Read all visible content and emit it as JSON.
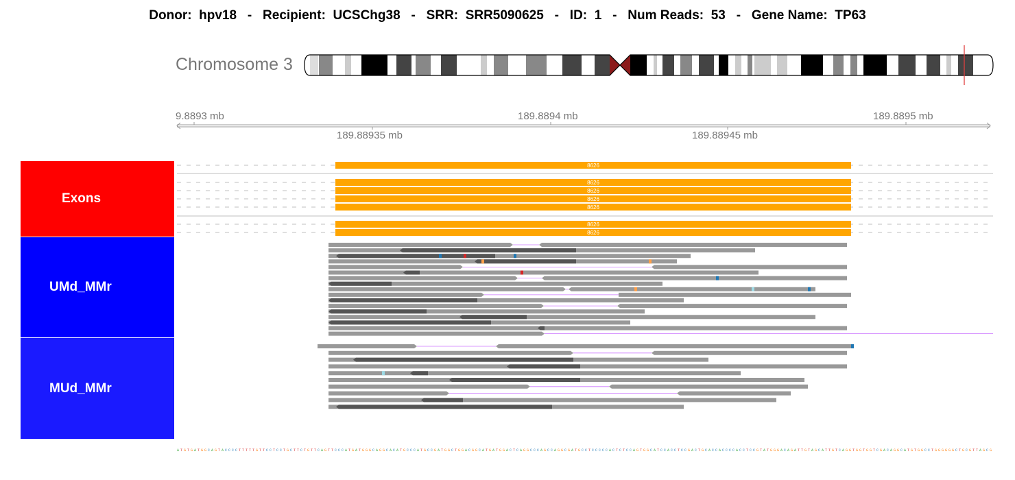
{
  "header": {
    "donor_label": "Donor:",
    "donor": "hpv18",
    "recipient_label": "Recipient:",
    "recipient": "UCSChg38",
    "srr_label": "SRR:",
    "srr": "SRR5090625",
    "id_label": "ID:",
    "id": "1",
    "reads_label": "Num Reads:",
    "reads": "53",
    "gene_label": "Gene Name:",
    "gene": "TP63",
    "separator": "-"
  },
  "chromosome": {
    "label": "Chromosome 3"
  },
  "ruler": {
    "top_ticks": [
      {
        "label": "9.8893 mb"
      },
      {
        "label": "189.8894 mb"
      },
      {
        "label": "189.8895 mb"
      }
    ],
    "bottom_ticks": [
      {
        "label": "189.88935 mb"
      },
      {
        "label": "189.88945 mb"
      }
    ]
  },
  "tracks": {
    "exons": {
      "label": "Exons",
      "color": "#ff0000",
      "feature_color": "#ffa500",
      "feature_label": "8626"
    },
    "umd": {
      "label": "UMd_MMr",
      "color": "#0000ff"
    },
    "mud": {
      "label": "MUd_MMr",
      "color": "#1a1aff"
    }
  },
  "colors": {
    "read_light": "#999999",
    "read_dark": "#555555",
    "mismatch_blue": "#1f77b4",
    "mismatch_red": "#d62728",
    "mismatch_orange": "#ff9f4a",
    "mismatch_lightblue": "#9edae5",
    "splice_line": "#cc77ff"
  },
  "sequence": "ATGTGATGGCAGTACCCCTTTTTGTTCCTCCTGCTTCTGTTCAGTTCCCATGATGGGCAGGCACATGCCCATGCCGATGGCTGGACGGCATGATGGACTCAGGCCCAGCCAGGCGATGCCTCCCCCACTCTCCAGTGGCATCCACCTCCGACTGCACCACCCCACCTCCGTATGGGACAGATTGTAGCATTGTCAGGTGGTGGTCGACAGGCATGTGGCCTGGGGGGCTGCGTTAGCG"
}
